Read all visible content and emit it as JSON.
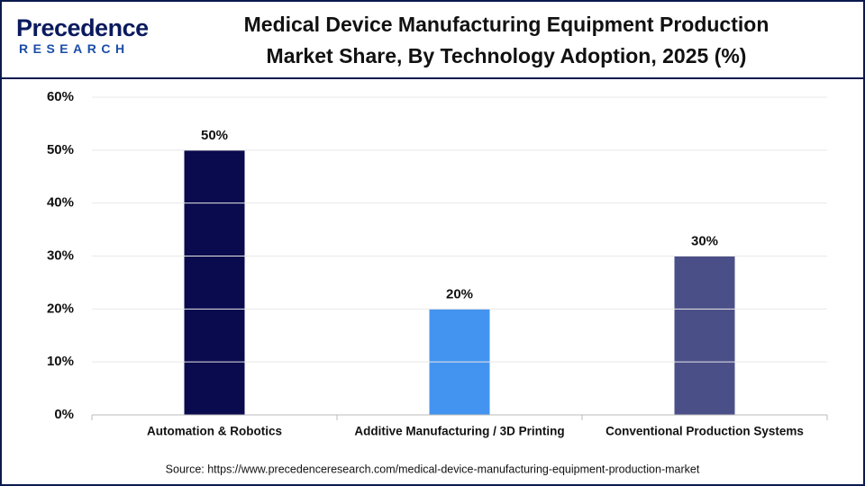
{
  "logo": {
    "name": "Precedence",
    "tagline": "RESEARCH"
  },
  "chart_data": {
    "type": "bar",
    "title": "Medical Device Manufacturing Equipment Production Market Share, By Technology Adoption, 2025 (%)",
    "categories": [
      "Automation & Robotics",
      "Additive Manufacturing / 3D Printing",
      "Conventional Production Systems"
    ],
    "values": [
      50,
      20,
      30
    ],
    "value_labels": [
      "50%",
      "20%",
      "30%"
    ],
    "colors": [
      "#0a0a4e",
      "#4394f0",
      "#4b4f88"
    ],
    "ylim": [
      0,
      60
    ],
    "yticks": [
      {
        "value": 0,
        "label": "0%"
      },
      {
        "value": 10,
        "label": "10%"
      },
      {
        "value": 20,
        "label": "20%"
      },
      {
        "value": 30,
        "label": "30%"
      },
      {
        "value": 40,
        "label": "40%"
      },
      {
        "value": 50,
        "label": "50%"
      },
      {
        "value": 60,
        "label": "60%"
      }
    ],
    "grid": true,
    "source": "Source: https://www.precedenceresearch.com/medical-device-manufacturing-equipment-production-market"
  }
}
